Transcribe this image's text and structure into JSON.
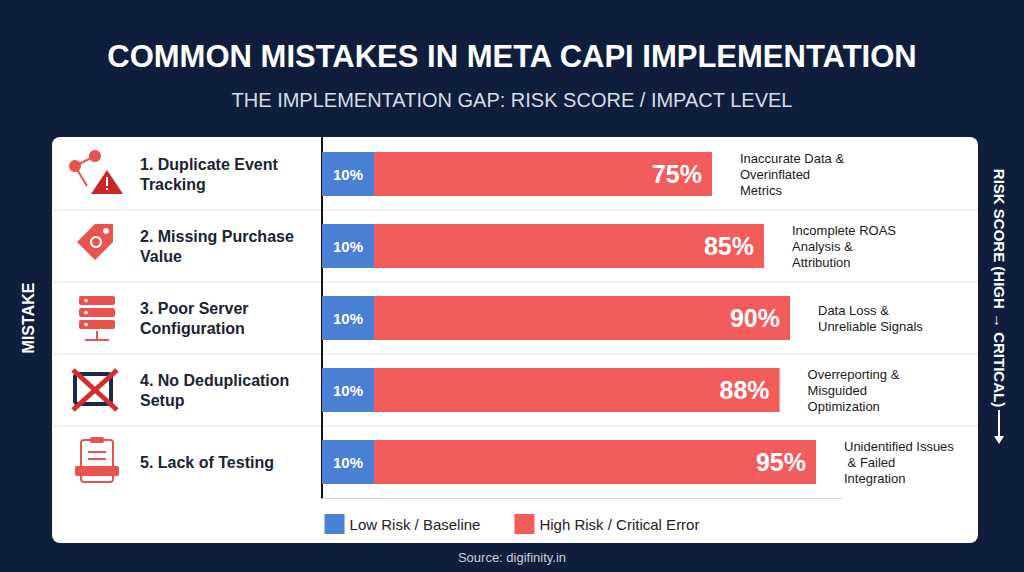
{
  "chart_data": {
    "type": "bar",
    "orientation": "horizontal",
    "title": "COMMON MISTAKES IN META CAPI IMPLEMENTATION",
    "subtitle": "THE IMPLEMENTATION GAP: RISK SCORE / IMPACT LEVEL",
    "y_axis_title": "MISTAKE",
    "right_axis_title": "RISK SCORE (HIGH → CRITICAL)",
    "source": "Source: digifinity.in",
    "categories": [
      "1. Duplicate Event Tracking",
      "2. Missing Purchase Value",
      "3. Poor Server Configuration",
      "4. No Deduplication Setup",
      "5. Lack of Testing"
    ],
    "series": [
      {
        "name": "Low Risk / Baseline",
        "color": "#4a80d6",
        "values": [
          10,
          10,
          10,
          10,
          10
        ],
        "value_labels": [
          "10%",
          "10%",
          "10%",
          "10%",
          "10%"
        ]
      },
      {
        "name": "High Risk / Critical Error",
        "color": "#f25c5a",
        "values": [
          75,
          85,
          90,
          88,
          95
        ],
        "value_labels": [
          "75%",
          "85%",
          "90%",
          "88%",
          "95%"
        ]
      }
    ],
    "annotations": [
      "Inaccurate Data & Overinflated Metrics",
      "Incomplete ROAS Analysis & Attribution",
      "Data Loss & Unreliable Signals",
      "Overreporting & Misguided Optimization",
      "Unidentified Issues & Failed Integration"
    ],
    "xlim": [
      0,
      100
    ],
    "tick_labels": "y",
    "data_labels": true,
    "stacked": false,
    "grid": false,
    "legend": "bottom"
  }
}
